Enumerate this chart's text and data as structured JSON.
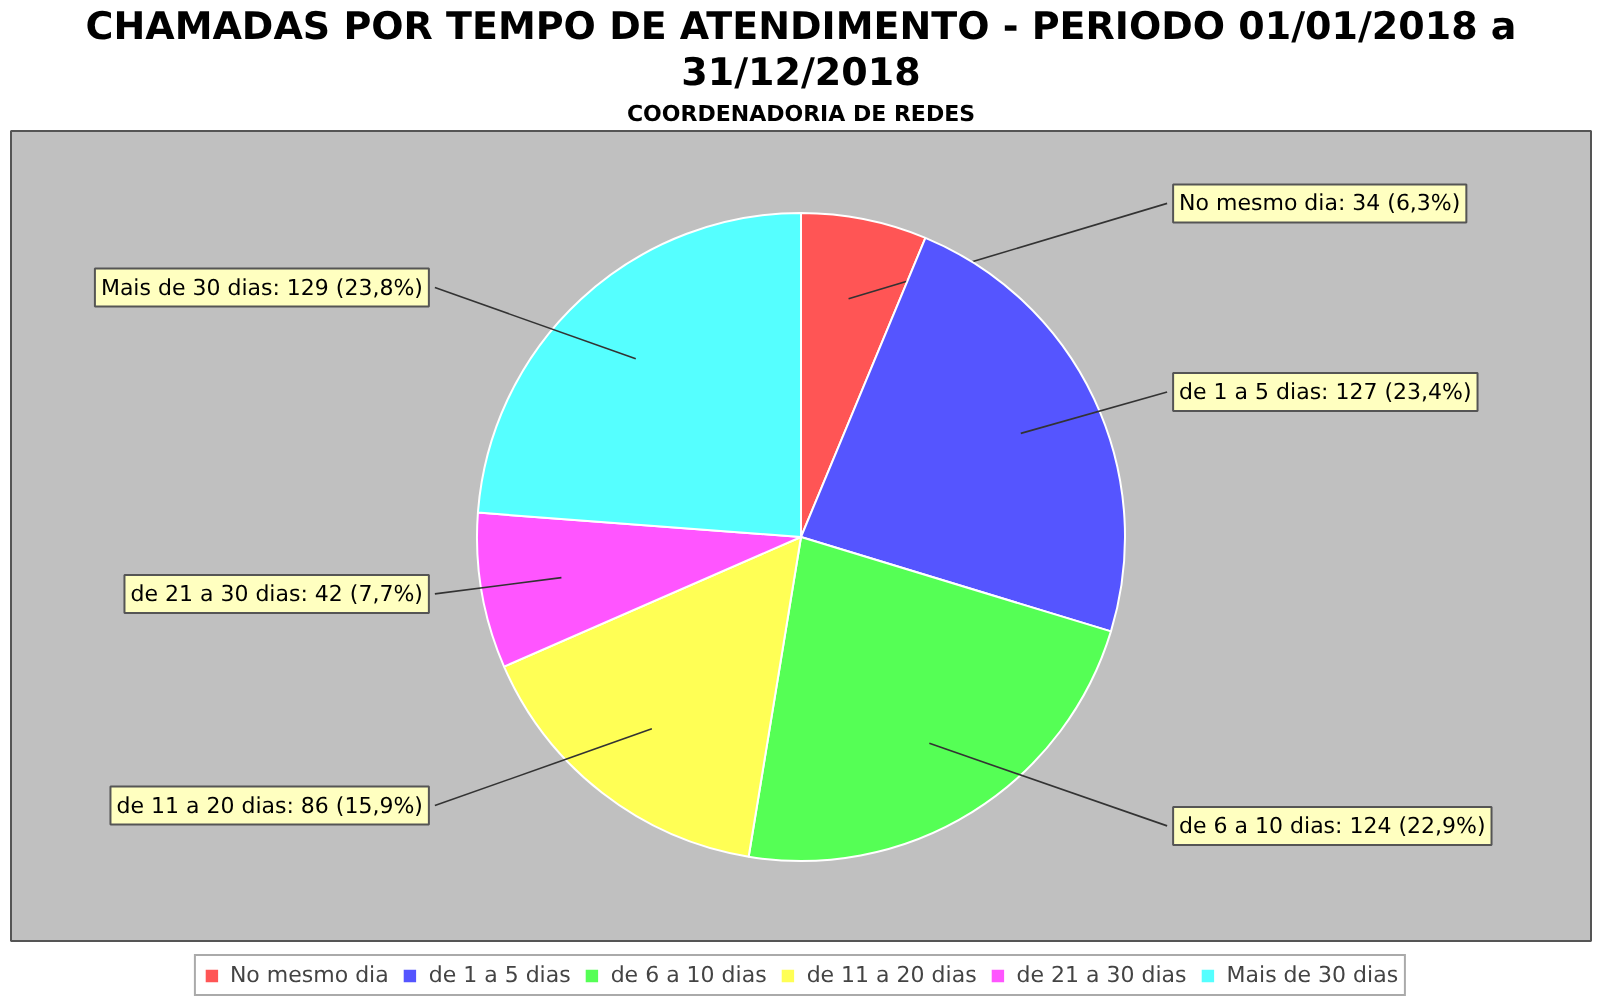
{
  "chart_data": {
    "type": "pie",
    "title": "CHAMADAS POR TEMPO DE ATENDIMENTO - PERIODO 01/01/2018 a 31/12/2018",
    "subtitle": "COORDENADORIA DE REDES",
    "categories": [
      "No mesmo dia",
      "de 1 a 5 dias",
      "de 6 a 10 dias",
      "de 11 a 20 dias",
      "de 21 a 30 dias",
      "Mais de 30 dias"
    ],
    "values": [
      34,
      127,
      124,
      86,
      42,
      129
    ],
    "colors": [
      "#ff5555",
      "#5555ff",
      "#55ff55",
      "#ffff55",
      "#ff55ff",
      "#55ffff"
    ],
    "value_labels": [
      "No mesmo dia: 34 (6,3%)",
      "de 1 a 5 dias: 127 (23,4%)",
      "de 6 a 10 dias: 124 (22,9%)",
      "de 11 a 20 dias: 86 (15,9%)",
      "de 21 a 30 dias: 42 (7,7%)",
      "Mais de 30 dias: 129 (23,8%)"
    ],
    "legend": "bottom"
  }
}
